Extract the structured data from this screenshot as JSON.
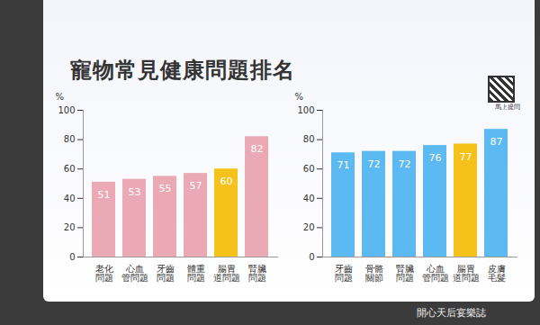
{
  "chart_data": [
    {
      "type": "bar",
      "title": "寵物常見健康問題排名",
      "y_label": "%",
      "categories": [
        "老化問題",
        "心血管問題",
        "牙齒問題",
        "體重問題",
        "腸胃道問題",
        "腎臟問題"
      ],
      "values": [
        51,
        53,
        55,
        57,
        60,
        82
      ],
      "colors": [
        "#eba9b5",
        "#eba9b5",
        "#eba9b5",
        "#eba9b5",
        "#f5c21b",
        "#eba9b5"
      ],
      "ylim": [
        0,
        100
      ],
      "yticks": [
        0,
        20,
        40,
        60,
        80,
        100
      ],
      "grid": false,
      "data_labels": true,
      "annotations": [
        "馬上提問",
        "開心天后宴樂誌"
      ]
    },
    {
      "type": "bar",
      "y_label": "%",
      "categories": [
        "牙齒問題",
        "骨骼關節",
        "腎臟問題",
        "心血管問題",
        "腸胃道問題",
        "皮膚毛髮"
      ],
      "values": [
        71,
        72,
        72,
        76,
        77,
        87
      ],
      "colors": [
        "#5cb9f2",
        "#5cb9f2",
        "#5cb9f2",
        "#5cb9f2",
        "#f5c21b",
        "#5cb9f2"
      ],
      "ylim": [
        0,
        100
      ],
      "yticks": [
        0,
        20,
        40,
        60,
        80,
        100
      ],
      "grid": false,
      "data_labels": true
    }
  ]
}
